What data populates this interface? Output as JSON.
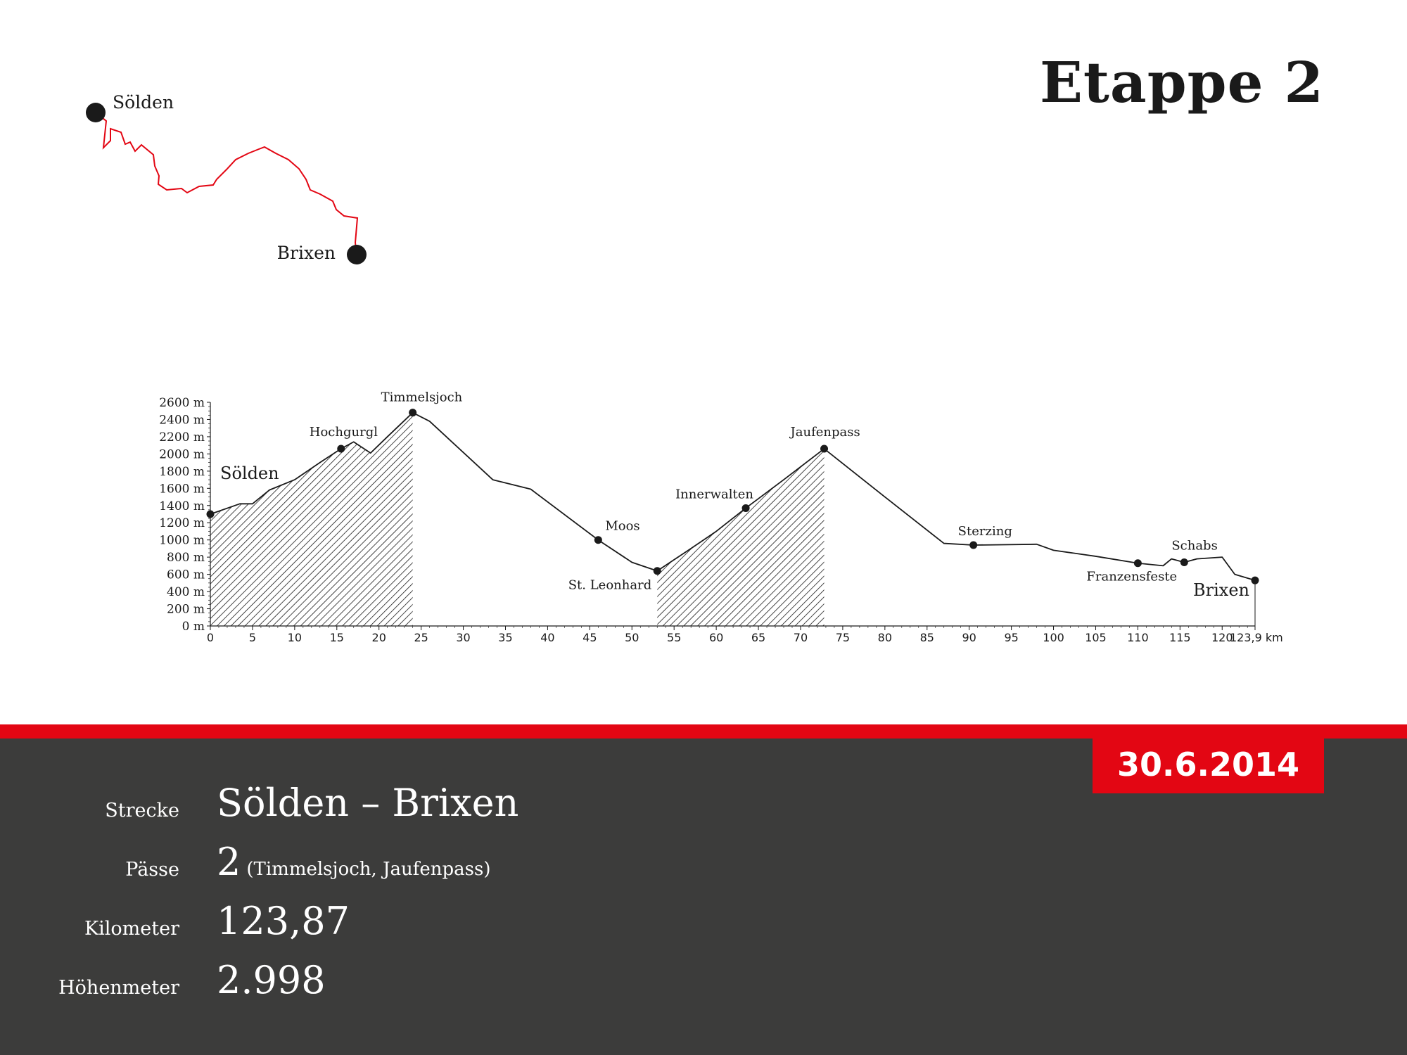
{
  "stage_title": "Etappe 2",
  "date": "30.6.2014",
  "route_map": {
    "start_label": "Sölden",
    "end_label": "Brixen",
    "route_color": "#e30613"
  },
  "facts": [
    {
      "label": "Strecke",
      "value": "Sölden – Brixen",
      "note": ""
    },
    {
      "label": "Pässe",
      "value": "2",
      "note": "(Timmelsjoch, Jaufenpass)"
    },
    {
      "label": "Kilometer",
      "value": "123,87",
      "note": ""
    },
    {
      "label": "Höhenmeter",
      "value": "2.998",
      "note": ""
    }
  ],
  "colors": {
    "accent_red": "#e30613",
    "panel_dark": "#3c3c3b",
    "ink": "#1a1a1a"
  },
  "chart_data": {
    "type": "area",
    "title": "",
    "xlabel": "",
    "ylabel": "",
    "x_unit": "km",
    "y_unit": "m",
    "xlim": [
      0,
      123.9
    ],
    "ylim": [
      0,
      2600
    ],
    "x_ticks": [
      0,
      5,
      10,
      15,
      20,
      25,
      30,
      35,
      40,
      45,
      50,
      55,
      60,
      65,
      70,
      75,
      80,
      85,
      90,
      95,
      100,
      105,
      110,
      115,
      120
    ],
    "x_end_tick": "123,9 km",
    "y_ticks": [
      0,
      200,
      400,
      600,
      800,
      1000,
      1200,
      1400,
      1600,
      1800,
      2000,
      2200,
      2400,
      2600
    ],
    "y_tick_suffix": " m",
    "grid": false,
    "profile": {
      "x": [
        0,
        3.5,
        5,
        7,
        10,
        13,
        15.5,
        17,
        19,
        21,
        24,
        26,
        33.5,
        38,
        46,
        50,
        53,
        57,
        60,
        63.5,
        68,
        72.8,
        80,
        87,
        90.5,
        98,
        100,
        105,
        110,
        113,
        114,
        115.5,
        117,
        120,
        121.5,
        123.9
      ],
      "y": [
        1300,
        1420,
        1420,
        1580,
        1700,
        1900,
        2060,
        2140,
        2010,
        2200,
        2480,
        2380,
        1700,
        1590,
        1000,
        740,
        640,
        900,
        1100,
        1370,
        1700,
        2060,
        1500,
        960,
        940,
        950,
        880,
        810,
        730,
        700,
        780,
        740,
        780,
        800,
        600,
        530
      ]
    },
    "hatched_ranges": [
      [
        0,
        24
      ],
      [
        53,
        72.8
      ]
    ],
    "waypoints": [
      {
        "name": "Sölden",
        "km": 0,
        "elev": 1300
      },
      {
        "name": "Hochgurgl",
        "km": 15.5,
        "elev": 2060
      },
      {
        "name": "Timmelsjoch",
        "km": 24,
        "elev": 2480
      },
      {
        "name": "Moos",
        "km": 46,
        "elev": 1000
      },
      {
        "name": "St. Leonhard",
        "km": 53,
        "elev": 640
      },
      {
        "name": "Innerwalten",
        "km": 63.5,
        "elev": 1370
      },
      {
        "name": "Jaufenpass",
        "km": 72.8,
        "elev": 2060
      },
      {
        "name": "Sterzing",
        "km": 90.5,
        "elev": 940
      },
      {
        "name": "Franzensfeste",
        "km": 110,
        "elev": 730
      },
      {
        "name": "Schabs",
        "km": 115.5,
        "elev": 740
      },
      {
        "name": "Brixen",
        "km": 123.9,
        "elev": 530
      }
    ]
  }
}
